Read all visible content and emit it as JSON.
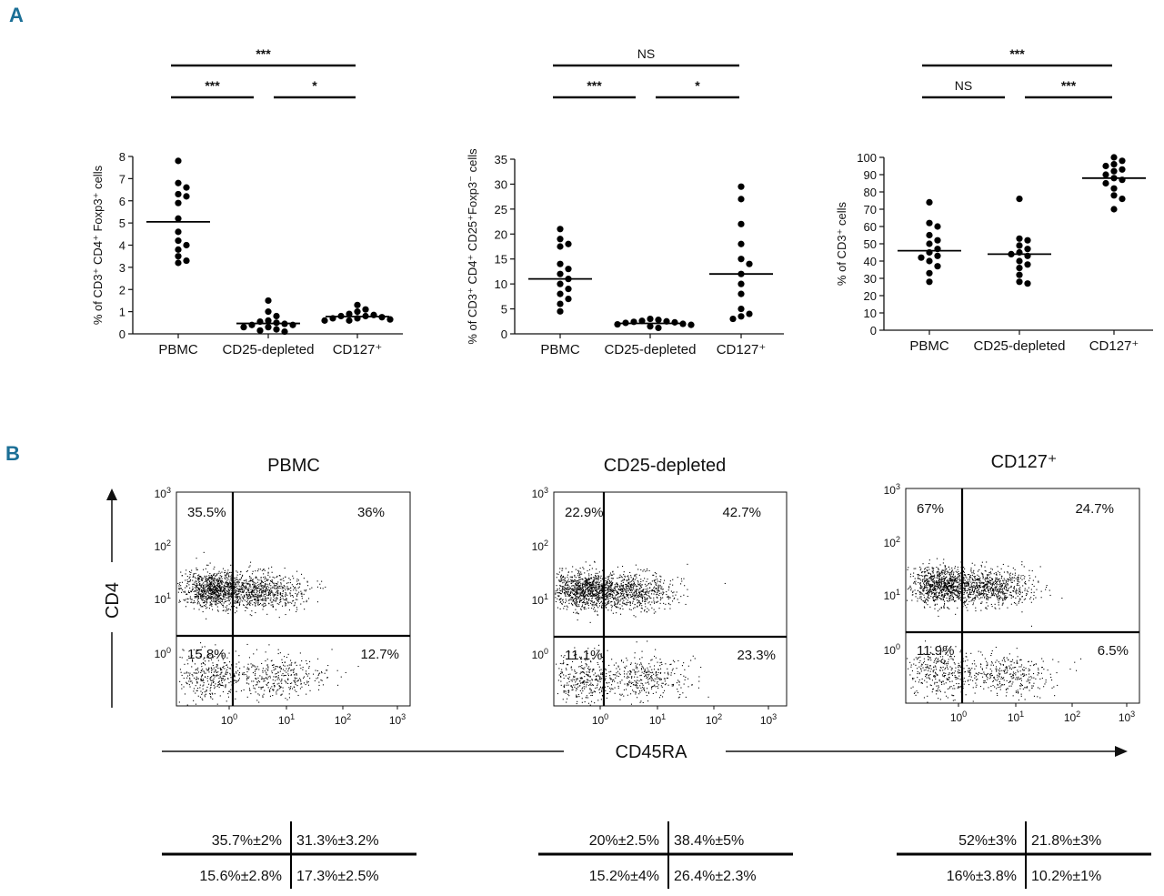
{
  "panel_labels": {
    "a": "A",
    "b": "B"
  },
  "chart_data": [
    {
      "type": "scatter",
      "panel": "A",
      "ylabel": "% of CD3⁺ CD4⁺ Foxp3⁺ cells",
      "ylim": [
        0,
        8
      ],
      "yticks": [
        0,
        1,
        2,
        3,
        4,
        5,
        6,
        7,
        8
      ],
      "categories": [
        "PBMC",
        "CD25-depleted",
        "CD127⁺"
      ],
      "series": [
        {
          "values": [
            7.8,
            6.8,
            6.6,
            6.3,
            6.2,
            5.9,
            5.2,
            4.6,
            4.2,
            4.0,
            3.8,
            3.5,
            3.3,
            3.2
          ],
          "median": 5.05
        },
        {
          "values": [
            1.5,
            1.0,
            0.8,
            0.6,
            0.55,
            0.5,
            0.45,
            0.4,
            0.4,
            0.3,
            0.3,
            0.2,
            0.15,
            0.1
          ],
          "median": 0.47
        },
        {
          "values": [
            1.3,
            1.1,
            1.0,
            0.9,
            0.85,
            0.8,
            0.8,
            0.75,
            0.7,
            0.7,
            0.65,
            0.6,
            0.6
          ],
          "median": 0.78
        }
      ],
      "significance": [
        {
          "label": "***",
          "from": 0,
          "to": 2,
          "level": 2
        },
        {
          "label": "***",
          "from": 0,
          "to": 1,
          "level": 1
        },
        {
          "label": "*",
          "from": 1,
          "to": 2,
          "level": 1
        }
      ]
    },
    {
      "type": "scatter",
      "panel": "A",
      "ylabel": "% of CD3⁺ CD4⁺ CD25⁺Foxp3⁻ cells",
      "ylim": [
        0,
        35
      ],
      "yticks": [
        0,
        5,
        10,
        15,
        20,
        25,
        30,
        35
      ],
      "categories": [
        "PBMC",
        "CD25-depleted",
        "CD127⁺"
      ],
      "series": [
        {
          "values": [
            21,
            19,
            18,
            17.5,
            14,
            13,
            12,
            11,
            10,
            9,
            8,
            7,
            6,
            4.5
          ],
          "median": 11
        },
        {
          "values": [
            3.0,
            2.8,
            2.6,
            2.5,
            2.4,
            2.3,
            2.2,
            2.0,
            1.9,
            1.8,
            1.5,
            1.2
          ],
          "median": 2.1
        },
        {
          "values": [
            29.5,
            27,
            22,
            18,
            15,
            14,
            12,
            10,
            8,
            5,
            4,
            3.5,
            3
          ],
          "median": 12
        }
      ],
      "significance": [
        {
          "label": "NS",
          "from": 0,
          "to": 2,
          "level": 2
        },
        {
          "label": "***",
          "from": 0,
          "to": 1,
          "level": 1
        },
        {
          "label": "*",
          "from": 1,
          "to": 2,
          "level": 1
        }
      ]
    },
    {
      "type": "scatter",
      "panel": "A",
      "ylabel": "% of CD3⁺ cells",
      "ylim": [
        0,
        100
      ],
      "yticks": [
        0,
        10,
        20,
        30,
        40,
        50,
        60,
        70,
        80,
        90,
        100
      ],
      "categories": [
        "PBMC",
        "CD25-depleted",
        "CD127⁺"
      ],
      "series": [
        {
          "values": [
            74,
            62,
            60,
            55,
            52,
            50,
            47,
            45,
            43,
            42,
            40,
            37,
            33,
            28
          ],
          "median": 46
        },
        {
          "values": [
            76,
            53,
            52,
            49,
            47,
            45,
            44,
            43,
            40,
            38,
            36,
            32,
            28,
            27
          ],
          "median": 44
        },
        {
          "values": [
            100,
            98,
            96,
            95,
            93,
            92,
            90,
            88,
            87,
            85,
            82,
            78,
            76,
            70
          ],
          "median": 88
        }
      ],
      "significance": [
        {
          "label": "***",
          "from": 0,
          "to": 2,
          "level": 2
        },
        {
          "label": "NS",
          "from": 0,
          "to": 1,
          "level": 1
        },
        {
          "label": "***",
          "from": 1,
          "to": 2,
          "level": 1
        }
      ]
    }
  ],
  "flow_panels": [
    {
      "title": "PBMC",
      "quadrants": [
        "35.5%",
        "36%",
        "15.8%",
        "12.7%"
      ],
      "table": [
        "35.7%±2%",
        "31.3%±3.2%",
        "15.6%±2.8%",
        "17.3%±2.5%"
      ]
    },
    {
      "title": "CD25-depleted",
      "quadrants": [
        "22.9%",
        "42.7%",
        "11.1%",
        "23.3%"
      ],
      "table": [
        "20%±2.5%",
        "38.4%±5%",
        "15.2%±4%",
        "26.4%±2.3%"
      ]
    },
    {
      "title": "CD127⁺",
      "quadrants": [
        "67%",
        "24.7%",
        "11.9%",
        "6.5%"
      ],
      "table": [
        "52%±3%",
        "21.8%±3%",
        "16%±3.8%",
        "10.2%±1%"
      ]
    }
  ],
  "decades": {
    "base": "10",
    "exponents": [
      "0",
      "1",
      "2",
      "3"
    ]
  },
  "axes_b": {
    "y": "CD4",
    "x": "CD45RA"
  }
}
